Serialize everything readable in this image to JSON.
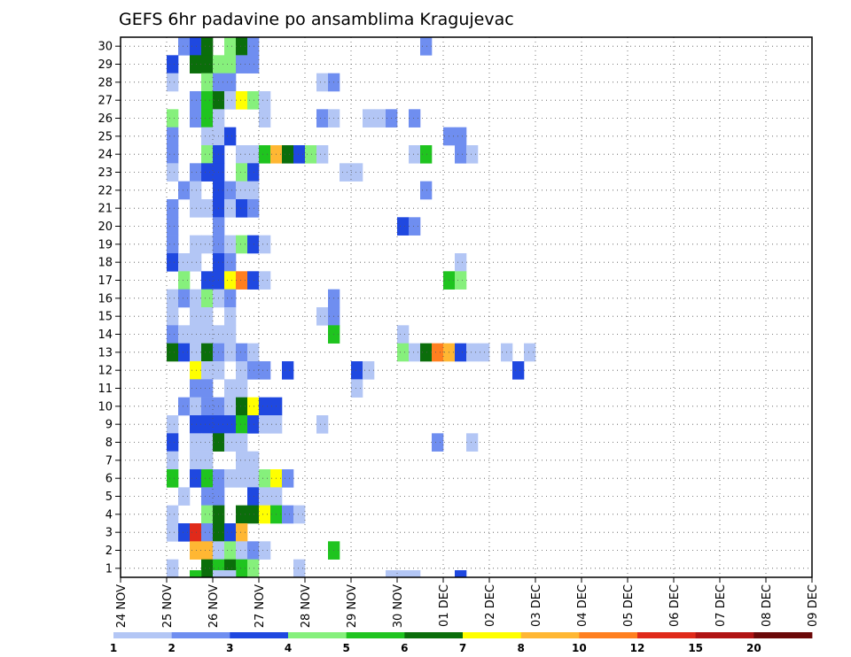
{
  "chart_data": {
    "type": "heatmap",
    "title": "GEFS 6hr padavine po ansamblima Kragujevac",
    "xlabel": "",
    "ylabel": "",
    "grid": true,
    "x_ticks": [
      "24 NOV",
      "25 NOV",
      "26 NOV",
      "27 NOV",
      "28 NOV",
      "29 NOV",
      "30 NOV",
      "01 DEC",
      "02 DEC",
      "03 DEC",
      "04 DEC",
      "05 DEC",
      "06 DEC",
      "07 DEC",
      "08 DEC",
      "09 DEC"
    ],
    "y_ticks": [
      "1",
      "2",
      "3",
      "4",
      "5",
      "6",
      "7",
      "8",
      "9",
      "10",
      "11",
      "12",
      "13",
      "14",
      "15",
      "16",
      "17",
      "18",
      "19",
      "20",
      "21",
      "22",
      "23",
      "24",
      "25",
      "26",
      "27",
      "28",
      "29",
      "30"
    ],
    "x_range": [
      0,
      60
    ],
    "y_range": [
      0.5,
      30.5
    ],
    "time_step": "6 hr",
    "colorbar": {
      "labels": [
        "1",
        "2",
        "3",
        "4",
        "5",
        "6",
        "7",
        "8",
        "10",
        "12",
        "15",
        "20"
      ],
      "colors": [
        "#b3c6f5",
        "#6f8ef0",
        "#1f48e0",
        "#86f07c",
        "#1fc41f",
        "#0b6e0b",
        "#ffff00",
        "#ffb733",
        "#ff7f1f",
        "#e02a1a",
        "#b01414",
        "#6b0808"
      ]
    },
    "cells": [
      {
        "member": 30,
        "x": [
          [
            5,
            1
          ],
          [
            6,
            2
          ],
          [
            7,
            5
          ],
          [
            9,
            3
          ],
          [
            10,
            5
          ],
          [
            11,
            1
          ],
          [
            26,
            1
          ]
        ]
      },
      {
        "member": 29,
        "x": [
          [
            4,
            2
          ],
          [
            6,
            5
          ],
          [
            7,
            5
          ],
          [
            8,
            3
          ],
          [
            9,
            3
          ],
          [
            10,
            1
          ],
          [
            11,
            1
          ]
        ]
      },
      {
        "member": 28,
        "x": [
          [
            4,
            0
          ],
          [
            7,
            3
          ],
          [
            8,
            1
          ],
          [
            9,
            1
          ],
          [
            17,
            0
          ],
          [
            18,
            1
          ]
        ]
      },
      {
        "member": 27,
        "x": [
          [
            6,
            1
          ],
          [
            7,
            4
          ],
          [
            8,
            5
          ],
          [
            9,
            0
          ],
          [
            10,
            6
          ],
          [
            11,
            3
          ],
          [
            12,
            0
          ]
        ]
      },
      {
        "member": 26,
        "x": [
          [
            4,
            3
          ],
          [
            6,
            1
          ],
          [
            7,
            4
          ],
          [
            8,
            0
          ],
          [
            12,
            0
          ],
          [
            17,
            1
          ],
          [
            18,
            0
          ],
          [
            21,
            0
          ],
          [
            22,
            0
          ],
          [
            23,
            1
          ],
          [
            25,
            1
          ]
        ]
      },
      {
        "member": 25,
        "x": [
          [
            4,
            1
          ],
          [
            7,
            0
          ],
          [
            8,
            0
          ],
          [
            9,
            2
          ],
          [
            28,
            1
          ],
          [
            29,
            1
          ]
        ]
      },
      {
        "member": 24,
        "x": [
          [
            4,
            1
          ],
          [
            7,
            3
          ],
          [
            8,
            2
          ],
          [
            10,
            0
          ],
          [
            11,
            0
          ],
          [
            12,
            4
          ],
          [
            13,
            7
          ],
          [
            14,
            5
          ],
          [
            15,
            2
          ],
          [
            16,
            3
          ],
          [
            17,
            0
          ],
          [
            25,
            0
          ],
          [
            26,
            4
          ],
          [
            29,
            1
          ],
          [
            30,
            0
          ]
        ]
      },
      {
        "member": 23,
        "x": [
          [
            4,
            0
          ],
          [
            6,
            1
          ],
          [
            7,
            2
          ],
          [
            8,
            2
          ],
          [
            10,
            3
          ],
          [
            11,
            2
          ],
          [
            19,
            0
          ],
          [
            20,
            0
          ]
        ]
      },
      {
        "member": 22,
        "x": [
          [
            5,
            1
          ],
          [
            6,
            0
          ],
          [
            8,
            2
          ],
          [
            9,
            1
          ],
          [
            10,
            0
          ],
          [
            11,
            0
          ],
          [
            26,
            1
          ]
        ]
      },
      {
        "member": 21,
        "x": [
          [
            4,
            1
          ],
          [
            6,
            0
          ],
          [
            7,
            0
          ],
          [
            8,
            2
          ],
          [
            9,
            0
          ],
          [
            10,
            2
          ],
          [
            11,
            1
          ]
        ]
      },
      {
        "member": 20,
        "x": [
          [
            4,
            1
          ],
          [
            8,
            1
          ],
          [
            24,
            2
          ],
          [
            25,
            1
          ]
        ]
      },
      {
        "member": 19,
        "x": [
          [
            4,
            1
          ],
          [
            6,
            0
          ],
          [
            7,
            0
          ],
          [
            8,
            1
          ],
          [
            9,
            0
          ],
          [
            10,
            3
          ],
          [
            11,
            2
          ],
          [
            12,
            0
          ]
        ]
      },
      {
        "member": 18,
        "x": [
          [
            4,
            2
          ],
          [
            5,
            0
          ],
          [
            6,
            0
          ],
          [
            8,
            2
          ],
          [
            9,
            1
          ],
          [
            29,
            0
          ]
        ]
      },
      {
        "member": 17,
        "x": [
          [
            5,
            3
          ],
          [
            7,
            2
          ],
          [
            8,
            2
          ],
          [
            9,
            6
          ],
          [
            10,
            8
          ],
          [
            11,
            2
          ],
          [
            12,
            0
          ],
          [
            28,
            4
          ],
          [
            29,
            3
          ]
        ]
      },
      {
        "member": 16,
        "x": [
          [
            4,
            0
          ],
          [
            5,
            1
          ],
          [
            6,
            0
          ],
          [
            7,
            3
          ],
          [
            8,
            0
          ],
          [
            9,
            1
          ],
          [
            18,
            1
          ]
        ]
      },
      {
        "member": 15,
        "x": [
          [
            4,
            0
          ],
          [
            6,
            0
          ],
          [
            7,
            0
          ],
          [
            9,
            0
          ],
          [
            17,
            0
          ],
          [
            18,
            1
          ]
        ]
      },
      {
        "member": 14,
        "x": [
          [
            4,
            1
          ],
          [
            5,
            0
          ],
          [
            6,
            0
          ],
          [
            7,
            0
          ],
          [
            8,
            0
          ],
          [
            9,
            0
          ],
          [
            18,
            4
          ],
          [
            24,
            0
          ]
        ]
      },
      {
        "member": 13,
        "x": [
          [
            4,
            5
          ],
          [
            5,
            2
          ],
          [
            6,
            0
          ],
          [
            7,
            5
          ],
          [
            8,
            1
          ],
          [
            9,
            0
          ],
          [
            10,
            1
          ],
          [
            11,
            0
          ],
          [
            24,
            3
          ],
          [
            25,
            0
          ],
          [
            26,
            5
          ],
          [
            27,
            8
          ],
          [
            28,
            7
          ],
          [
            29,
            2
          ],
          [
            30,
            0
          ],
          [
            31,
            0
          ],
          [
            33,
            0
          ],
          [
            35,
            0
          ]
        ]
      },
      {
        "member": 12,
        "x": [
          [
            6,
            6
          ],
          [
            7,
            0
          ],
          [
            8,
            0
          ],
          [
            10,
            0
          ],
          [
            11,
            1
          ],
          [
            12,
            1
          ],
          [
            14,
            2
          ],
          [
            20,
            2
          ],
          [
            21,
            0
          ],
          [
            34,
            2
          ]
        ]
      },
      {
        "member": 11,
        "x": [
          [
            6,
            1
          ],
          [
            7,
            1
          ],
          [
            9,
            0
          ],
          [
            10,
            0
          ],
          [
            20,
            0
          ]
        ]
      },
      {
        "member": 10,
        "x": [
          [
            5,
            1
          ],
          [
            6,
            0
          ],
          [
            7,
            1
          ],
          [
            8,
            1
          ],
          [
            9,
            0
          ],
          [
            10,
            5
          ],
          [
            11,
            6
          ],
          [
            12,
            2
          ],
          [
            13,
            2
          ]
        ]
      },
      {
        "member": 9,
        "x": [
          [
            4,
            0
          ],
          [
            6,
            2
          ],
          [
            7,
            2
          ],
          [
            8,
            2
          ],
          [
            9,
            2
          ],
          [
            10,
            4
          ],
          [
            11,
            2
          ],
          [
            12,
            0
          ],
          [
            13,
            0
          ],
          [
            17,
            0
          ]
        ]
      },
      {
        "member": 8,
        "x": [
          [
            4,
            2
          ],
          [
            6,
            0
          ],
          [
            7,
            0
          ],
          [
            8,
            5
          ],
          [
            9,
            0
          ],
          [
            10,
            0
          ],
          [
            27,
            1
          ],
          [
            30,
            0
          ]
        ]
      },
      {
        "member": 7,
        "x": [
          [
            4,
            0
          ],
          [
            6,
            0
          ],
          [
            7,
            0
          ],
          [
            10,
            0
          ],
          [
            11,
            0
          ]
        ]
      },
      {
        "member": 6,
        "x": [
          [
            4,
            4
          ],
          [
            6,
            2
          ],
          [
            7,
            4
          ],
          [
            8,
            1
          ],
          [
            9,
            0
          ],
          [
            10,
            0
          ],
          [
            11,
            0
          ],
          [
            12,
            3
          ],
          [
            13,
            6
          ],
          [
            14,
            1
          ]
        ]
      },
      {
        "member": 5,
        "x": [
          [
            5,
            0
          ],
          [
            7,
            1
          ],
          [
            8,
            1
          ],
          [
            11,
            2
          ],
          [
            12,
            0
          ],
          [
            13,
            0
          ]
        ]
      },
      {
        "member": 4,
        "x": [
          [
            4,
            0
          ],
          [
            7,
            3
          ],
          [
            8,
            5
          ],
          [
            10,
            5
          ],
          [
            11,
            5
          ],
          [
            12,
            6
          ],
          [
            13,
            4
          ],
          [
            14,
            1
          ],
          [
            15,
            0
          ]
        ]
      },
      {
        "member": 3,
        "x": [
          [
            4,
            0
          ],
          [
            5,
            2
          ],
          [
            6,
            9
          ],
          [
            7,
            1
          ],
          [
            8,
            5
          ],
          [
            9,
            2
          ],
          [
            10,
            7
          ]
        ]
      },
      {
        "member": 2,
        "x": [
          [
            6,
            7
          ],
          [
            7,
            7
          ],
          [
            8,
            0
          ],
          [
            9,
            3
          ],
          [
            10,
            0
          ],
          [
            11,
            1
          ],
          [
            12,
            0
          ],
          [
            18,
            4
          ]
        ]
      },
      {
        "member": 1,
        "x": [
          [
            4,
            0
          ],
          [
            7,
            5
          ],
          [
            8,
            4
          ],
          [
            9,
            5
          ],
          [
            10,
            4
          ],
          [
            11,
            3
          ],
          [
            15,
            0
          ]
        ]
      },
      {
        "member": 0,
        "x": [
          [
            6,
            4
          ],
          [
            8,
            0
          ],
          [
            9,
            0
          ],
          [
            23,
            0
          ],
          [
            24,
            0
          ],
          [
            25,
            0
          ],
          [
            29,
            2
          ]
        ]
      }
    ]
  }
}
